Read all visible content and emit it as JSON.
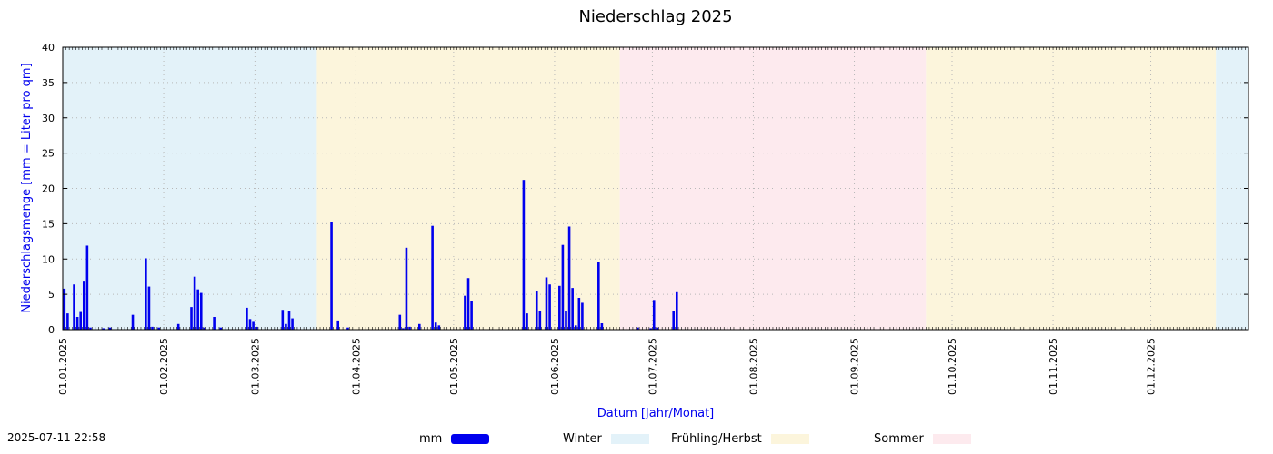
{
  "chart_data": {
    "type": "bar",
    "title": "Niederschlag 2025",
    "xlabel": "Datum [Jahr/Monat]",
    "ylabel": "Niederschlagsmenge [mm = Liter pro qm]",
    "ylim": [
      0,
      40
    ],
    "xlim": [
      "2025-01-01",
      "2025-12-31"
    ],
    "grid": true,
    "y_ticks": [
      "0",
      "5",
      "10",
      "15",
      "20",
      "25",
      "30",
      "35",
      "40"
    ],
    "x_ticks": [
      {
        "date": "2025-01-01",
        "label": "01.01.2025"
      },
      {
        "date": "2025-02-01",
        "label": "01.02.2025"
      },
      {
        "date": "2025-03-01",
        "label": "01.03.2025"
      },
      {
        "date": "2025-04-01",
        "label": "01.04.2025"
      },
      {
        "date": "2025-05-01",
        "label": "01.05.2025"
      },
      {
        "date": "2025-06-01",
        "label": "01.06.2025"
      },
      {
        "date": "2025-07-01",
        "label": "01.07.2025"
      },
      {
        "date": "2025-08-01",
        "label": "01.08.2025"
      },
      {
        "date": "2025-09-01",
        "label": "01.09.2025"
      },
      {
        "date": "2025-10-01",
        "label": "01.10.2025"
      },
      {
        "date": "2025-11-01",
        "label": "01.11.2025"
      },
      {
        "date": "2025-12-01",
        "label": "01.12.2025"
      }
    ],
    "seasons": [
      {
        "name": "Winter",
        "start": "2025-01-01",
        "end": "2025-03-20",
        "color": "#e3f2f9"
      },
      {
        "name": "Frühling/Herbst",
        "start": "2025-03-20",
        "end": "2025-06-21",
        "color": "#fcf5dc"
      },
      {
        "name": "Sommer",
        "start": "2025-06-21",
        "end": "2025-09-23",
        "color": "#fdeaee"
      },
      {
        "name": "Frühling/Herbst",
        "start": "2025-09-23",
        "end": "2025-12-21",
        "color": "#fcf5dc"
      },
      {
        "name": "Winter",
        "start": "2025-12-21",
        "end": "2025-12-31",
        "color": "#e3f2f9"
      }
    ],
    "series": [
      {
        "name": "mm",
        "color": "#0000ee",
        "points": [
          {
            "x": "2025-01-01",
            "y": 5.8
          },
          {
            "x": "2025-01-02",
            "y": 2.3
          },
          {
            "x": "2025-01-04",
            "y": 6.4
          },
          {
            "x": "2025-01-05",
            "y": 1.8
          },
          {
            "x": "2025-01-06",
            "y": 2.5
          },
          {
            "x": "2025-01-07",
            "y": 6.8
          },
          {
            "x": "2025-01-08",
            "y": 11.9
          },
          {
            "x": "2025-01-09",
            "y": 0.3
          },
          {
            "x": "2025-01-13",
            "y": 0.2
          },
          {
            "x": "2025-01-15",
            "y": 0.3
          },
          {
            "x": "2025-01-22",
            "y": 2.1
          },
          {
            "x": "2025-01-26",
            "y": 10.1
          },
          {
            "x": "2025-01-27",
            "y": 6.1
          },
          {
            "x": "2025-01-28",
            "y": 0.4
          },
          {
            "x": "2025-01-30",
            "y": 0.3
          },
          {
            "x": "2025-02-05",
            "y": 0.8
          },
          {
            "x": "2025-02-09",
            "y": 3.2
          },
          {
            "x": "2025-02-10",
            "y": 7.5
          },
          {
            "x": "2025-02-11",
            "y": 5.7
          },
          {
            "x": "2025-02-12",
            "y": 5.2
          },
          {
            "x": "2025-02-13",
            "y": 0.3
          },
          {
            "x": "2025-02-16",
            "y": 1.8
          },
          {
            "x": "2025-02-18",
            "y": 0.3
          },
          {
            "x": "2025-02-26",
            "y": 3.1
          },
          {
            "x": "2025-02-27",
            "y": 1.5
          },
          {
            "x": "2025-02-28",
            "y": 1.1
          },
          {
            "x": "2025-03-01",
            "y": 0.4
          },
          {
            "x": "2025-03-09",
            "y": 2.8
          },
          {
            "x": "2025-03-10",
            "y": 0.8
          },
          {
            "x": "2025-03-11",
            "y": 2.7
          },
          {
            "x": "2025-03-12",
            "y": 1.6
          },
          {
            "x": "2025-03-24",
            "y": 15.3
          },
          {
            "x": "2025-03-26",
            "y": 1.3
          },
          {
            "x": "2025-03-29",
            "y": 0.3
          },
          {
            "x": "2025-04-14",
            "y": 2.1
          },
          {
            "x": "2025-04-15",
            "y": 0.2
          },
          {
            "x": "2025-04-16",
            "y": 11.6
          },
          {
            "x": "2025-04-17",
            "y": 0.4
          },
          {
            "x": "2025-04-20",
            "y": 0.8
          },
          {
            "x": "2025-04-24",
            "y": 14.7
          },
          {
            "x": "2025-04-25",
            "y": 1.0
          },
          {
            "x": "2025-04-26",
            "y": 0.6
          },
          {
            "x": "2025-05-04",
            "y": 4.8
          },
          {
            "x": "2025-05-05",
            "y": 7.3
          },
          {
            "x": "2025-05-06",
            "y": 4.1
          },
          {
            "x": "2025-05-22",
            "y": 21.2
          },
          {
            "x": "2025-05-23",
            "y": 2.3
          },
          {
            "x": "2025-05-26",
            "y": 5.4
          },
          {
            "x": "2025-05-27",
            "y": 2.6
          },
          {
            "x": "2025-05-29",
            "y": 7.4
          },
          {
            "x": "2025-05-30",
            "y": 6.4
          },
          {
            "x": "2025-06-02",
            "y": 6.2
          },
          {
            "x": "2025-06-03",
            "y": 12.0
          },
          {
            "x": "2025-06-04",
            "y": 2.7
          },
          {
            "x": "2025-06-05",
            "y": 14.6
          },
          {
            "x": "2025-06-06",
            "y": 5.9
          },
          {
            "x": "2025-06-07",
            "y": 0.6
          },
          {
            "x": "2025-06-08",
            "y": 4.5
          },
          {
            "x": "2025-06-09",
            "y": 3.8
          },
          {
            "x": "2025-06-14",
            "y": 9.6
          },
          {
            "x": "2025-06-15",
            "y": 0.9
          },
          {
            "x": "2025-06-26",
            "y": 0.3
          },
          {
            "x": "2025-06-30",
            "y": 0.2
          },
          {
            "x": "2025-07-01",
            "y": 4.2
          },
          {
            "x": "2025-07-02",
            "y": 0.3
          },
          {
            "x": "2025-07-07",
            "y": 2.7
          },
          {
            "x": "2025-07-08",
            "y": 5.3
          }
        ]
      }
    ],
    "legend": {
      "placement": "bottom",
      "entries": [
        {
          "label": "mm",
          "color": "#0000ee"
        },
        {
          "label": "Winter",
          "color": "#e3f2f9"
        },
        {
          "label": "Frühling/Herbst",
          "color": "#fcf5dc"
        },
        {
          "label": "Sommer",
          "color": "#fdeaee"
        }
      ]
    },
    "timestamp": "2025-07-11 22:58"
  }
}
